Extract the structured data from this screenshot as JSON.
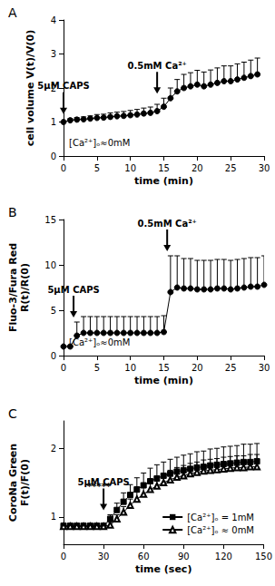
{
  "chart_data": [
    {
      "panel": "A",
      "type": "line",
      "xlabel": "time (min)",
      "ylabel": "cell volume V(t)/V(0)",
      "xlim": [
        0,
        30
      ],
      "xticks": [
        0,
        5,
        10,
        15,
        20,
        25,
        30
      ],
      "ylim": [
        0,
        4
      ],
      "yticks": [
        0,
        1,
        2,
        3,
        4
      ],
      "grid": false,
      "note": "[Ca²⁺]ₒ≈0mM",
      "annotations": [
        {
          "text": "5µM CAPS",
          "x": 0
        },
        {
          "text": "0.5mM Ca²⁺",
          "x": 14
        }
      ],
      "x": [
        0,
        1,
        2,
        3,
        4,
        5,
        6,
        7,
        8,
        9,
        10,
        11,
        12,
        13,
        14,
        15,
        16,
        17,
        18,
        19,
        20,
        21,
        22,
        23,
        24,
        25,
        26,
        27,
        28,
        29
      ],
      "series": [
        {
          "color": "#000000",
          "marker": "circle",
          "values": [
            1.0,
            1.05,
            1.07,
            1.08,
            1.1,
            1.12,
            1.13,
            1.15,
            1.17,
            1.18,
            1.2,
            1.22,
            1.25,
            1.27,
            1.32,
            1.45,
            1.7,
            1.9,
            2.0,
            2.05,
            2.1,
            2.05,
            2.1,
            2.15,
            2.2,
            2.2,
            2.25,
            2.3,
            2.35,
            2.4
          ],
          "errors": [
            0.03,
            0.05,
            0.06,
            0.07,
            0.08,
            0.1,
            0.1,
            0.12,
            0.12,
            0.13,
            0.14,
            0.15,
            0.16,
            0.17,
            0.2,
            0.25,
            0.3,
            0.35,
            0.4,
            0.4,
            0.42,
            0.42,
            0.43,
            0.44,
            0.45,
            0.45,
            0.46,
            0.46,
            0.47,
            0.48
          ]
        }
      ]
    },
    {
      "panel": "B",
      "type": "line",
      "xlabel": "time (min)",
      "ylabel": "Fluo-3/Fura Red\nR(t)/R(0)",
      "xlim": [
        0,
        30
      ],
      "xticks": [
        0,
        5,
        10,
        15,
        20,
        25,
        30
      ],
      "ylim": [
        0,
        15
      ],
      "yticks": [
        0,
        5,
        10,
        15
      ],
      "grid": false,
      "note": "[Ca²⁺]ₒ≈0mM",
      "annotations": [
        {
          "text": "5µM CAPS",
          "x": 1.5
        },
        {
          "text": "0.5mM Ca²⁺",
          "x": 15.5
        }
      ],
      "x": [
        0,
        1,
        2,
        3,
        4,
        5,
        6,
        7,
        8,
        9,
        10,
        11,
        12,
        13,
        14,
        15,
        16,
        17,
        18,
        19,
        20,
        21,
        22,
        23,
        24,
        25,
        26,
        27,
        28,
        29,
        30
      ],
      "series": [
        {
          "color": "#000000",
          "marker": "circle",
          "values": [
            1,
            1,
            2.2,
            2.5,
            2.5,
            2.5,
            2.5,
            2.5,
            2.5,
            2.5,
            2.5,
            2.5,
            2.5,
            2.5,
            2.5,
            2.6,
            7.0,
            7.5,
            7.4,
            7.4,
            7.3,
            7.3,
            7.3,
            7.4,
            7.4,
            7.3,
            7.4,
            7.5,
            7.6,
            7.6,
            7.8
          ],
          "errors": [
            0,
            0.1,
            1.5,
            1.8,
            1.8,
            1.8,
            1.8,
            1.8,
            1.8,
            1.8,
            1.8,
            1.8,
            1.8,
            1.8,
            1.8,
            1.8,
            4.0,
            3.5,
            3.3,
            3.3,
            3.2,
            3.2,
            3.2,
            3.2,
            3.2,
            3.2,
            3.2,
            3.2,
            3.2,
            3.2,
            3.2
          ]
        }
      ]
    },
    {
      "panel": "C",
      "type": "line",
      "xlabel": "time (sec)",
      "ylabel": "CoroNa Green\nF(t)/F(0)",
      "xlim": [
        0,
        150
      ],
      "xticks": [
        0,
        30,
        60,
        90,
        120,
        150
      ],
      "ylim": [
        0.6,
        2.4
      ],
      "yticks": [
        1,
        2
      ],
      "grid": false,
      "legend": "lower right",
      "annotations": [
        {
          "text": "5µM CAPS",
          "x": 30
        }
      ],
      "significance": {
        "text": "*****",
        "x": 45
      },
      "x": [
        0,
        5,
        10,
        15,
        20,
        25,
        30,
        35,
        40,
        45,
        50,
        55,
        60,
        65,
        70,
        75,
        80,
        85,
        90,
        95,
        100,
        105,
        110,
        115,
        120,
        125,
        130,
        135,
        140,
        145
      ],
      "series": [
        {
          "name": "[Ca²⁺]ₒ = 1mM",
          "color": "#000000",
          "marker": "square",
          "values": [
            0.87,
            0.87,
            0.87,
            0.87,
            0.87,
            0.87,
            0.87,
            0.97,
            1.1,
            1.22,
            1.32,
            1.4,
            1.46,
            1.52,
            1.56,
            1.6,
            1.63,
            1.66,
            1.68,
            1.7,
            1.72,
            1.73,
            1.75,
            1.76,
            1.77,
            1.78,
            1.79,
            1.8,
            1.8,
            1.81
          ],
          "errors": [
            0.03,
            0.03,
            0.03,
            0.03,
            0.03,
            0.03,
            0.03,
            0.06,
            0.1,
            0.13,
            0.15,
            0.17,
            0.18,
            0.19,
            0.2,
            0.2,
            0.21,
            0.21,
            0.22,
            0.22,
            0.23,
            0.23,
            0.24,
            0.24,
            0.25,
            0.25,
            0.25,
            0.26,
            0.26,
            0.26
          ]
        },
        {
          "name": "[Ca²⁺]ₒ ≈ 0mM",
          "color": "#000000",
          "marker": "open_triangle",
          "values": [
            0.86,
            0.86,
            0.86,
            0.86,
            0.86,
            0.86,
            0.86,
            0.88,
            0.97,
            1.07,
            1.17,
            1.26,
            1.33,
            1.4,
            1.45,
            1.5,
            1.54,
            1.58,
            1.6,
            1.63,
            1.65,
            1.67,
            1.68,
            1.69,
            1.7,
            1.71,
            1.72,
            1.72,
            1.73,
            1.73
          ],
          "errors": [
            0.02,
            0.02,
            0.02,
            0.02,
            0.02,
            0.02,
            0.02,
            0.04,
            0.06,
            0.08,
            0.09,
            0.1,
            0.11,
            0.12,
            0.13,
            0.13,
            0.14,
            0.14,
            0.15,
            0.15,
            0.15,
            0.16,
            0.16,
            0.16,
            0.17,
            0.17,
            0.17,
            0.17,
            0.18,
            0.18
          ]
        }
      ]
    }
  ]
}
